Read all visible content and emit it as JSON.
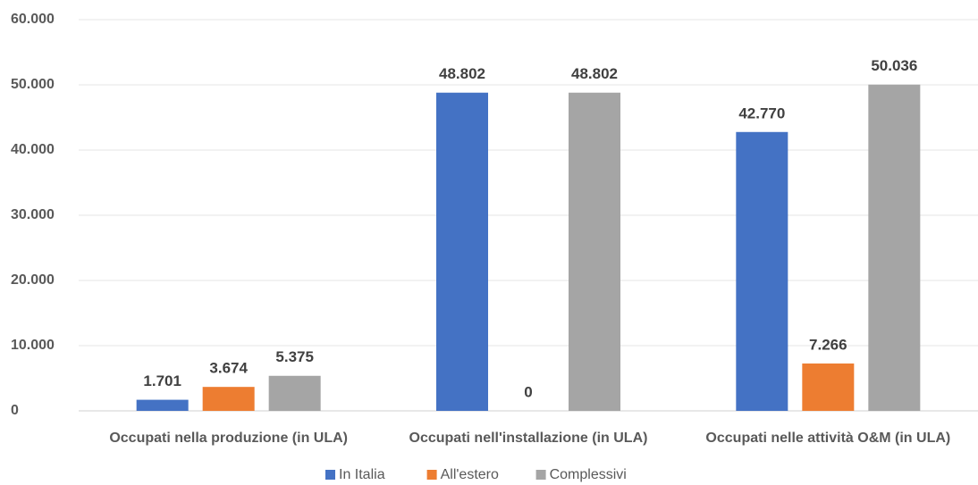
{
  "chart_data": {
    "type": "bar",
    "categories": [
      "Occupati nella produzione (in ULA)",
      "Occupati nell'installazione (in ULA)",
      "Occupati nelle attività O&M (in ULA)"
    ],
    "series": [
      {
        "name": "In Italia",
        "color": "#4472c4",
        "values": [
          1701,
          48802,
          42770
        ],
        "value_labels": [
          "1.701",
          "48.802",
          "42.770"
        ]
      },
      {
        "name": "All'estero",
        "color": "#ed7d31",
        "values": [
          3674,
          0,
          7266
        ],
        "value_labels": [
          "3.674",
          "0",
          "7.266"
        ]
      },
      {
        "name": "Complessivi",
        "color": "#a5a5a5",
        "values": [
          5375,
          48802,
          50036
        ],
        "value_labels": [
          "5.375",
          "48.802",
          "50.036"
        ]
      }
    ],
    "ylim": [
      0,
      60000
    ],
    "yticks": [
      0,
      {
        "value": 10000,
        "label": "10.000"
      },
      {
        "value": 20000,
        "label": "20.000"
      },
      {
        "value": 30000,
        "label": "30.000"
      },
      {
        "value": 40000,
        "label": "40.000"
      },
      {
        "value": 50000,
        "label": "50.000"
      },
      {
        "value": 60000,
        "label": "60.000"
      }
    ],
    "grid": true,
    "legend": "bottom"
  }
}
